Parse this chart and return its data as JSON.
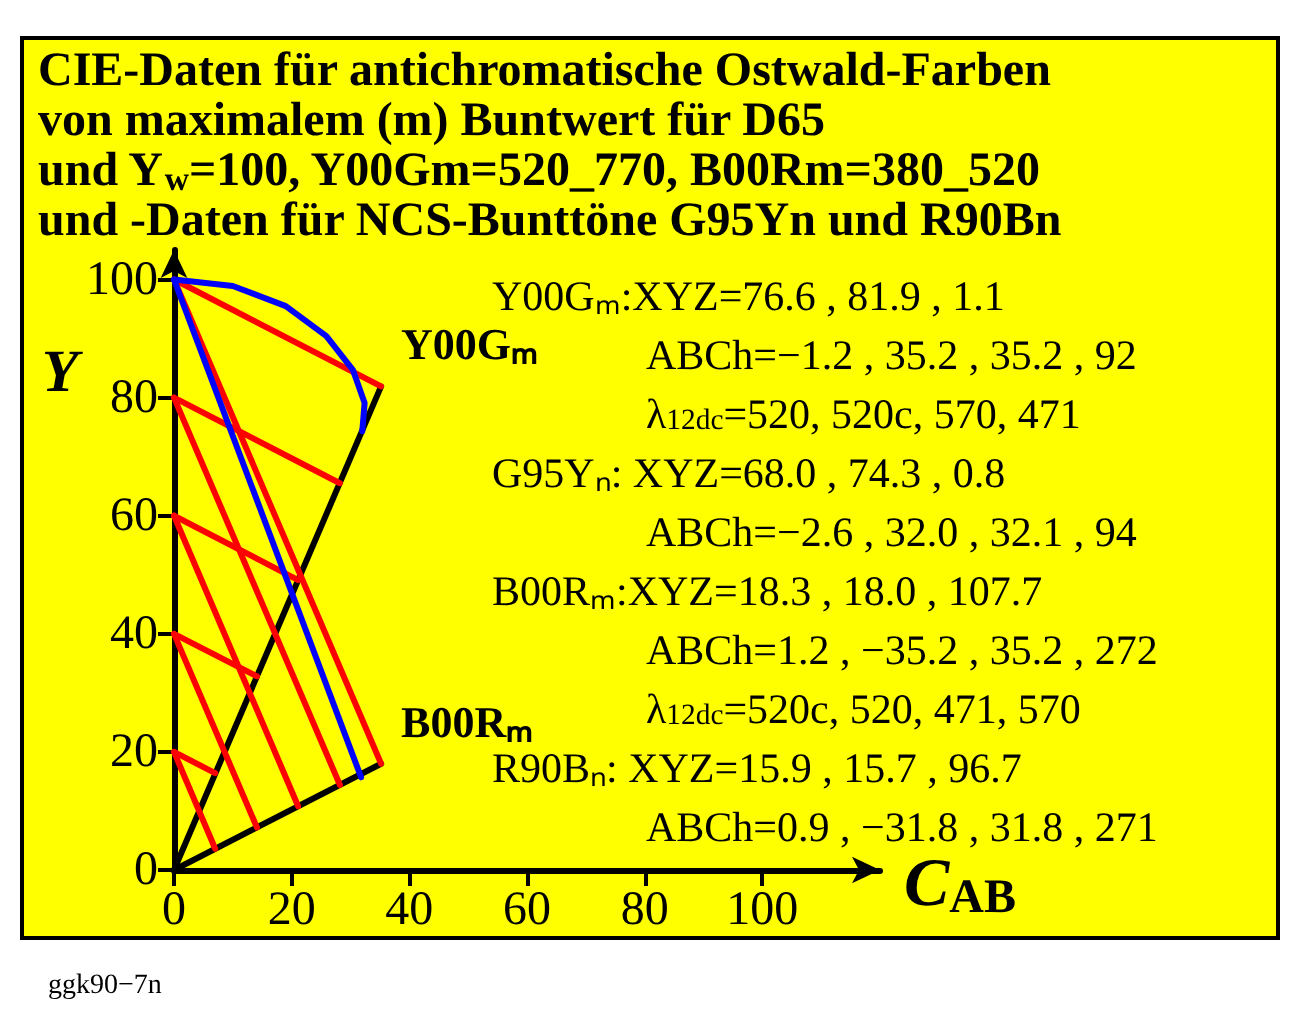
{
  "chart_data": {
    "type": "line",
    "title": "CIE-Daten für antichromatische Ostwald-Farben\nvon maximalem (m) Buntwert für D65\nund Y$_{w}$=100, Y00Gm=520_770, B00Rm=380_520\nund -Daten für NCS-Bunttöne G95Yn und R90Bn",
    "xlabel": "C$_{AB}$",
    "ylabel": "Y",
    "xlim": [
      0,
      120
    ],
    "ylim": [
      0,
      105
    ],
    "xticks": [
      0,
      20,
      40,
      60,
      80,
      100
    ],
    "yticks": [
      0,
      20,
      40,
      60,
      80,
      100
    ],
    "grid": false,
    "marker": "none",
    "line_style": "solid",
    "series": [
      {
        "color": "#000000",
        "x": [
          0,
          35.2
        ],
        "values": [
          0,
          81.9
        ]
      },
      {
        "color": "#000000",
        "x": [
          0,
          35.2
        ],
        "values": [
          0,
          18.0
        ]
      },
      {
        "color": "#ff0000",
        "x": [
          0,
          35.2
        ],
        "values": [
          100,
          81.9
        ]
      },
      {
        "color": "#ff0000",
        "x": [
          0,
          35.2
        ],
        "values": [
          100,
          18.0
        ]
      },
      {
        "color": "#ff0000",
        "x": [
          0,
          28.2
        ],
        "values": [
          80,
          65.5
        ]
      },
      {
        "color": "#ff0000",
        "x": [
          0,
          28.2
        ],
        "values": [
          80,
          14.4
        ]
      },
      {
        "color": "#ff0000",
        "x": [
          0,
          21.1
        ],
        "values": [
          60,
          49.1
        ]
      },
      {
        "color": "#ff0000",
        "x": [
          0,
          21.1
        ],
        "values": [
          60,
          10.8
        ]
      },
      {
        "color": "#ff0000",
        "x": [
          0,
          14.1
        ],
        "values": [
          40,
          32.8
        ]
      },
      {
        "color": "#ff0000",
        "x": [
          0,
          14.1
        ],
        "values": [
          40,
          7.2
        ]
      },
      {
        "color": "#ff0000",
        "x": [
          0,
          7.0
        ],
        "values": [
          20,
          16.4
        ]
      },
      {
        "color": "#ff0000",
        "x": [
          0,
          7.0
        ],
        "values": [
          20,
          3.6
        ]
      },
      {
        "color": "#0000ff",
        "x": [
          0,
          31.8
        ],
        "values": [
          100,
          15.7
        ]
      },
      {
        "color": "#0000ff",
        "x": [
          0,
          10,
          19,
          25.9,
          30.4,
          32.4,
          32.0
        ],
        "values": [
          100,
          98.9,
          95.5,
          90.4,
          84.7,
          79.1,
          74.3
        ]
      }
    ],
    "annotations": [
      {
        "text": "Y00Gₘ",
        "x": 35.2,
        "y": 81.9
      },
      {
        "text": "B00Rₘ",
        "x": 35.2,
        "y": 18.0
      },
      {
        "text": "Y00Gₘ:XYZ=76.6 , 81.9 , 1.1"
      },
      {
        "text": "ABCh=−1.2 , 35.2 , 35.2 , 92"
      },
      {
        "text": "λ$_{12dc}$=520, 520c, 570, 471"
      },
      {
        "text": "G95Yₙ: XYZ=68.0 , 74.3 , 0.8"
      },
      {
        "text": "ABCh=−2.6 , 32.0 , 32.1 , 94"
      },
      {
        "text": "B00Rₘ:XYZ=18.3 , 18.0 , 107.7"
      },
      {
        "text": "ABCh=1.2 , −35.2 , 35.2 , 272"
      },
      {
        "text": "λ$_{12dc}$=520c, 520, 471, 570"
      },
      {
        "text": "R90Bₙ: XYZ=15.9 , 15.7 , 96.7"
      },
      {
        "text": "ABCh=0.9 , −31.8 , 31.8 , 271"
      },
      "ggk90−7n"
    ]
  }
}
